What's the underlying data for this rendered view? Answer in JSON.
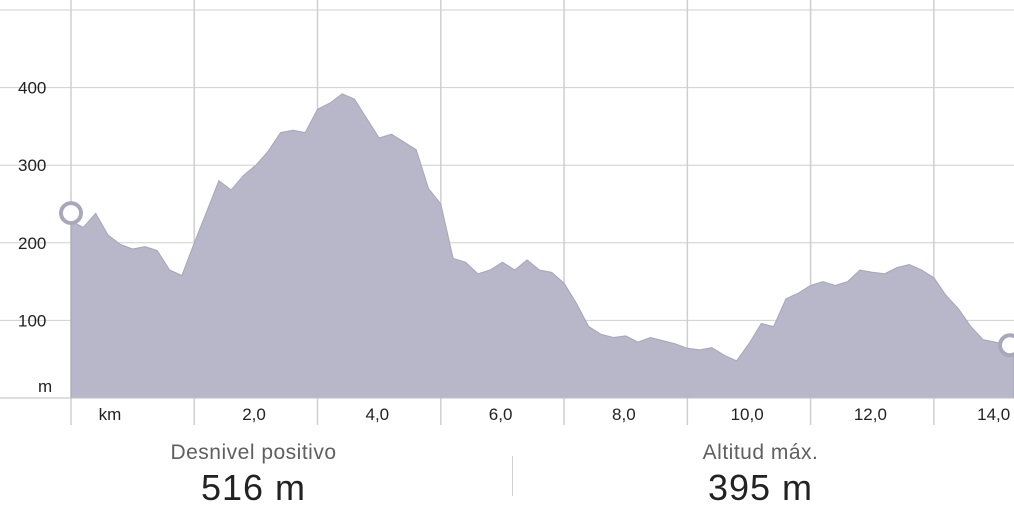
{
  "chart_data": {
    "type": "area",
    "y_tick_labels": [
      "400",
      "300",
      "200",
      "100"
    ],
    "y_unit_label": "m",
    "x_unit_label": "km",
    "x_tick_labels": [
      "2,0",
      "4,0",
      "6,0",
      "8,0",
      "10,0",
      "12,0",
      "14,0"
    ],
    "ylim": [
      0,
      500
    ],
    "xlim": [
      0,
      15.3
    ],
    "grid": true,
    "fill_color": "#b7b7c9",
    "grid_color": "#cfcfcf",
    "markers": [
      "start",
      "end"
    ],
    "x": [
      0,
      0.2,
      0.4,
      0.6,
      0.8,
      1.0,
      1.2,
      1.4,
      1.6,
      1.8,
      2.0,
      2.2,
      2.4,
      2.6,
      2.8,
      3.0,
      3.2,
      3.4,
      3.6,
      3.8,
      4.0,
      4.2,
      4.4,
      4.6,
      4.8,
      5.0,
      5.2,
      5.4,
      5.6,
      5.8,
      6.0,
      6.2,
      6.4,
      6.6,
      6.8,
      7.0,
      7.2,
      7.4,
      7.6,
      7.8,
      8.0,
      8.2,
      8.4,
      8.6,
      8.8,
      9.0,
      9.2,
      9.4,
      9.6,
      9.8,
      10.0,
      10.2,
      10.4,
      10.6,
      10.8,
      11.0,
      11.2,
      11.4,
      11.6,
      11.8,
      12.0,
      12.2,
      12.4,
      12.6,
      12.8,
      13.0,
      13.2,
      13.4,
      13.6,
      13.8,
      14.0,
      14.2,
      14.4,
      14.6,
      14.8,
      15.0,
      15.2,
      15.3
    ],
    "y": [
      228,
      220,
      238,
      210,
      198,
      192,
      195,
      190,
      165,
      158,
      200,
      240,
      280,
      268,
      287,
      300,
      318,
      342,
      345,
      342,
      372,
      380,
      392,
      385,
      360,
      335,
      340,
      330,
      320,
      270,
      250,
      180,
      175,
      160,
      165,
      175,
      165,
      178,
      165,
      162,
      148,
      122,
      92,
      82,
      78,
      80,
      72,
      78,
      74,
      70,
      64,
      62,
      65,
      55,
      48,
      70,
      96,
      92,
      128,
      135,
      145,
      150,
      145,
      150,
      165,
      162,
      160,
      168,
      172,
      165,
      155,
      132,
      115,
      92,
      75,
      72,
      68,
      68
    ]
  },
  "stats": {
    "left_label": "Desnivel positivo",
    "left_value": "516 m",
    "right_label": "Altitud máx.",
    "right_value": "395 m"
  }
}
